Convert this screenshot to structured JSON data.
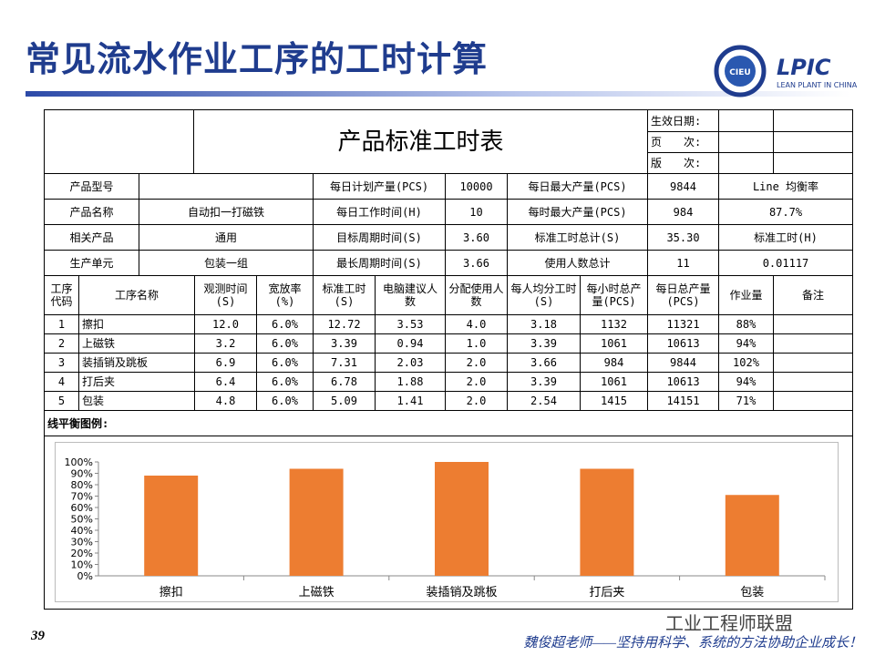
{
  "header": {
    "title": "常见流水作业工序的工时计算",
    "logo_left": "CIEU",
    "logo_right": "LPIC",
    "logo_right_sub": "LEAN PLANT IN CHINA"
  },
  "form": {
    "title": "产品标准工时表",
    "meta_labels": [
      "生效日期:",
      "页　　次:",
      "版　　次:"
    ]
  },
  "info": {
    "rows": [
      [
        "产品型号",
        "每日计划产量(PCS)",
        "10000",
        "每日最大产量(PCS)",
        "9844",
        "Line 均衡率"
      ],
      [
        "产品名称",
        "自动扣一打磁铁",
        "每日工作时间(H)",
        "10",
        "每时最大产量(PCS)",
        "984",
        "87.7%"
      ],
      [
        "相关产品",
        "通用",
        "目标周期时间(S)",
        "3.60",
        "标准工时总计(S)",
        "35.30",
        "标准工时(H)"
      ],
      [
        "生产单元",
        "包装一组",
        "最长周期时间(S)",
        "3.66",
        "使用人数总计",
        "11",
        "0.01117"
      ]
    ]
  },
  "table": {
    "columns": [
      "工序代码",
      "工序名称",
      "观测时间(S)",
      "宽放率(%)",
      "标准工时(S)",
      "电脑建议人数",
      "分配使用人数",
      "每人均分工时(S)",
      "每小时总产量(PCS)",
      "每日总产量(PCS)",
      "作业量",
      "备注"
    ],
    "rows": [
      [
        "1",
        "擦扣",
        "12.0",
        "6.0%",
        "12.72",
        "3.53",
        "4.0",
        "3.18",
        "1132",
        "11321",
        "88%"
      ],
      [
        "2",
        "上磁铁",
        "3.2",
        "6.0%",
        "3.39",
        "0.94",
        "1.0",
        "3.39",
        "1061",
        "10613",
        "94%"
      ],
      [
        "3",
        "装插销及跳板",
        "6.9",
        "6.0%",
        "7.31",
        "2.03",
        "2.0",
        "3.66",
        "984",
        "9844",
        "102%"
      ],
      [
        "4",
        "打后夹",
        "6.4",
        "6.0%",
        "6.78",
        "1.88",
        "2.0",
        "3.39",
        "1061",
        "10613",
        "94%"
      ],
      [
        "5",
        "包装",
        "4.8",
        "6.0%",
        "5.09",
        "1.41",
        "2.0",
        "2.54",
        "1415",
        "14151",
        "71%"
      ]
    ]
  },
  "legend_label": "线平衡图例:",
  "chart_data": {
    "type": "bar",
    "categories": [
      "擦扣",
      "上磁铁",
      "装插销及跳板",
      "打后夹",
      "包装"
    ],
    "values": [
      88,
      94,
      102,
      94,
      71
    ],
    "color": "#ed7d31",
    "ylim": [
      0,
      100
    ],
    "yticks": [
      {
        "value": 0,
        "label": "0%"
      },
      {
        "value": 10,
        "label": "10%"
      },
      {
        "value": 20,
        "label": "20%"
      },
      {
        "value": 30,
        "label": "30%"
      },
      {
        "value": 40,
        "label": "40%"
      },
      {
        "value": 50,
        "label": "50%"
      },
      {
        "value": 60,
        "label": "60%"
      },
      {
        "value": 70,
        "label": "70%"
      },
      {
        "value": 80,
        "label": "80%"
      },
      {
        "value": 90,
        "label": "90%"
      },
      {
        "value": 100,
        "label": "100%"
      }
    ]
  },
  "footer": {
    "page": "39",
    "slogan": "魏俊超老师——坚持用科学、系统的方法协助企业成长！",
    "watermark": "工业工程师联盟"
  }
}
